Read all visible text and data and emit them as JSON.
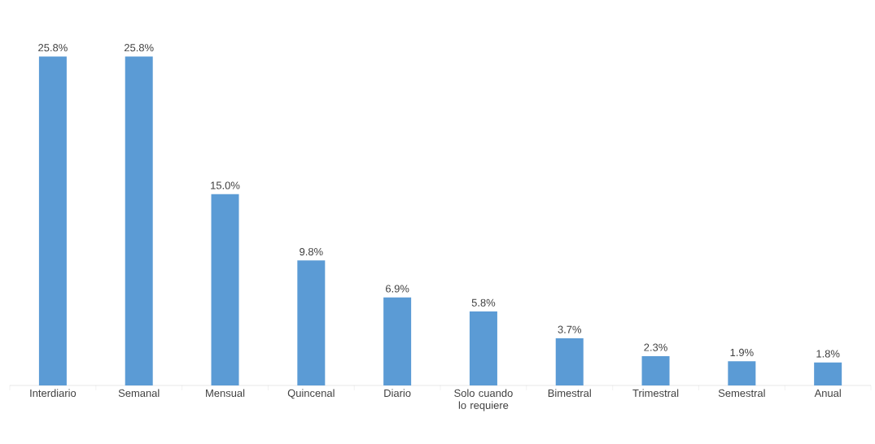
{
  "chart_data": {
    "type": "bar",
    "categories": [
      "Interdiario",
      "Semanal",
      "Mensual",
      "Quincenal",
      "Diario",
      "Solo cuando lo requiere",
      "Bimestral",
      "Trimestral",
      "Semestral",
      "Anual"
    ],
    "values": [
      25.8,
      25.8,
      15.0,
      9.8,
      6.9,
      5.8,
      3.7,
      2.3,
      1.9,
      1.8
    ],
    "value_labels": [
      "25.8%",
      "25.8%",
      "15.0%",
      "9.8%",
      "6.9%",
      "5.8%",
      "3.7%",
      "2.3%",
      "1.9%",
      "1.8%"
    ],
    "color": "#5b9bd5",
    "grid": false,
    "tick_labels": "x"
  }
}
